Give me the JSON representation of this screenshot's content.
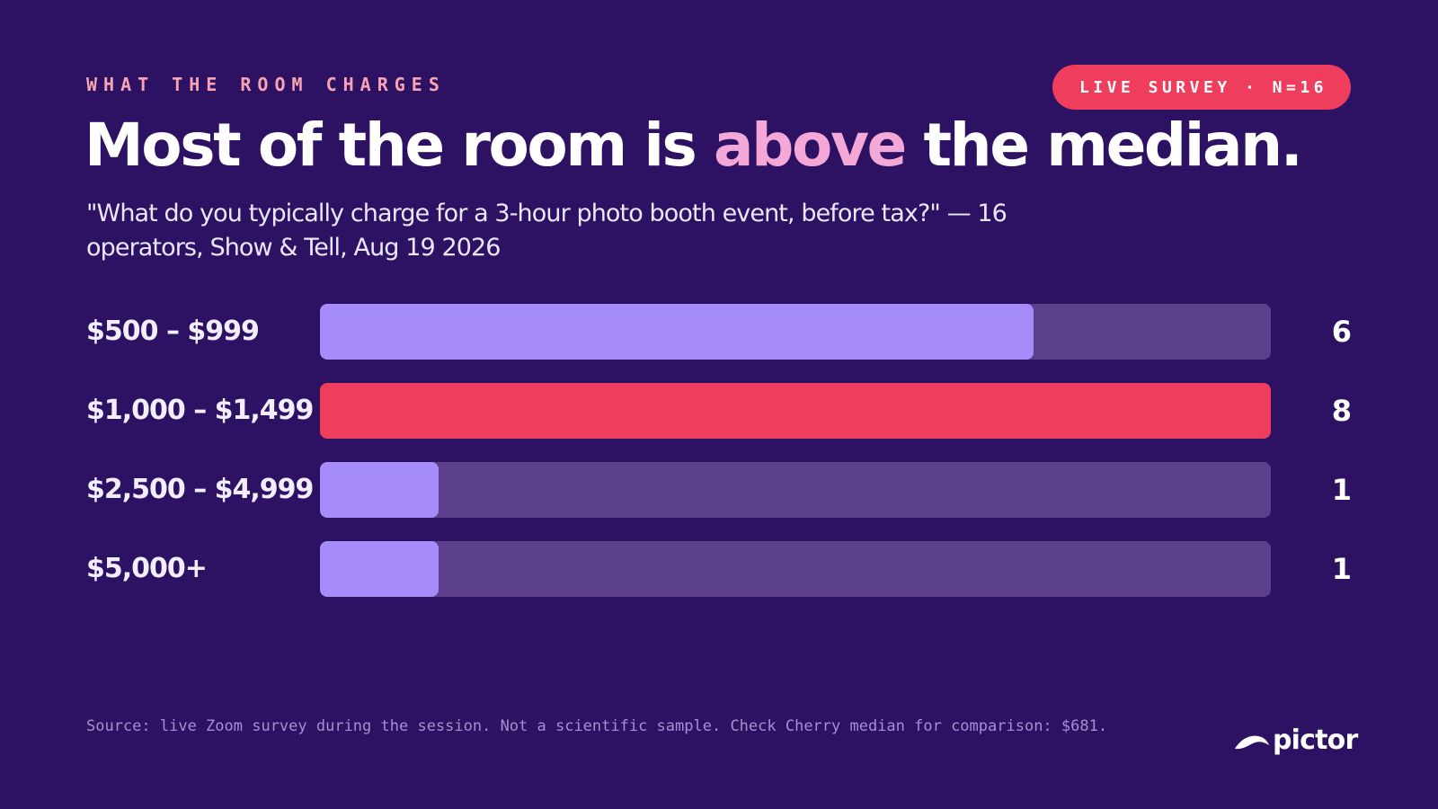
{
  "eyebrow": "WHAT THE ROOM CHARGES",
  "badge": "LIVE SURVEY · N=16",
  "headline": {
    "before": "Most of the room is ",
    "accent": "above",
    "after": " the median."
  },
  "subtitle": "\"What do you typically charge for a 3-hour photo booth event, before tax?\" — 16 operators, Show & Tell, Aug 19 2026",
  "footnote": "Source: live Zoom survey during the session. Not a scientific sample. Check Cherry median for comparison: $681.",
  "logo": {
    "text": "pictor"
  },
  "colors": {
    "background": "#2d1263",
    "bar_default": "#a68cf8",
    "bar_highlight": "#ef3d5e",
    "track": "#5b3f8c",
    "accent_text": "#f4a8d8"
  },
  "chart_data": {
    "type": "bar",
    "orientation": "horizontal",
    "categories": [
      "$500 – $999",
      "$1,000 – $1,499",
      "$2,500 – $4,999",
      "$5,000+"
    ],
    "values": [
      6,
      8,
      1,
      1
    ],
    "value_labels": [
      "6",
      "8",
      "1",
      "1"
    ],
    "highlight_index": 1,
    "xlim": [
      0,
      8
    ],
    "grid": false,
    "legend": "none"
  }
}
